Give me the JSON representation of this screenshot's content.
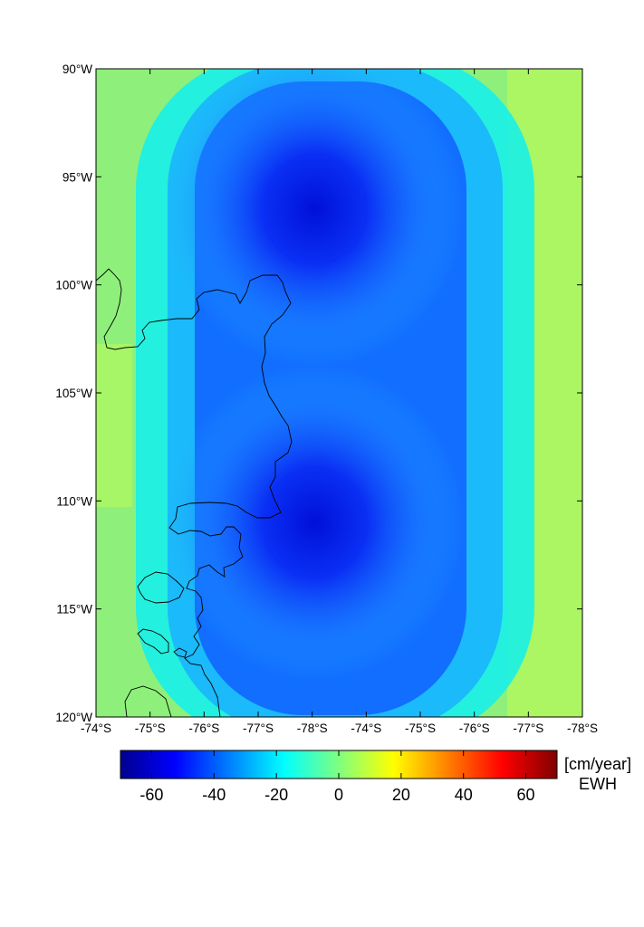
{
  "chart_data": {
    "type": "heatmap",
    "title": "",
    "xlabel": "",
    "ylabel": "",
    "x_tick_labels": [
      "-74°S",
      "-75°S",
      "-76°S",
      "-77°S",
      "-78°S",
      "-74°S",
      "-75°S",
      "-76°S",
      "-77°S",
      "-78°S"
    ],
    "y_tick_labels": [
      "90°W",
      "95°W",
      "100°W",
      "105°W",
      "110°W",
      "115°W",
      "120°W"
    ],
    "y_range": [
      90,
      120
    ],
    "field_minima": [
      {
        "x_fraction": 0.45,
        "y_deg": 96.5,
        "value": -65
      },
      {
        "x_fraction": 0.45,
        "y_deg": 111,
        "value": -65
      }
    ],
    "colorbar": {
      "colormap": "jet",
      "range": [
        -70,
        70
      ],
      "ticks": [
        -60,
        -40,
        -20,
        0,
        20,
        40,
        60
      ],
      "unit": "[cm/year]",
      "label": "EWH"
    },
    "grid": false,
    "legend": "none"
  }
}
